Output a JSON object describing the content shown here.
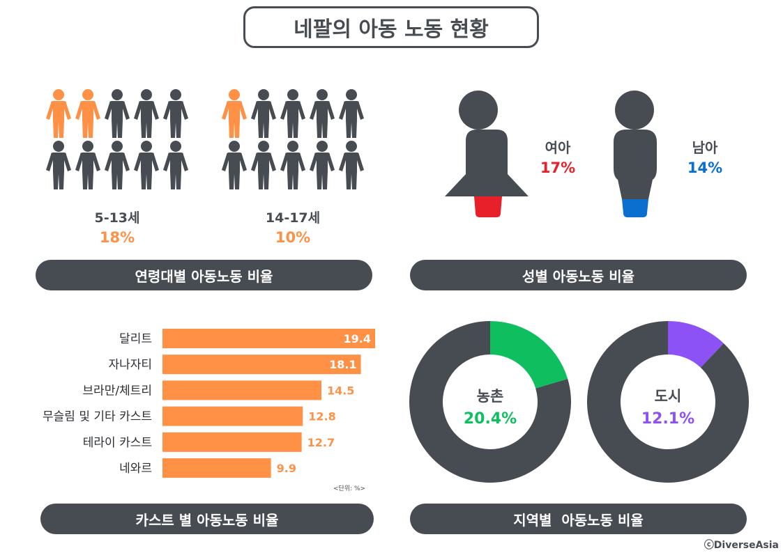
{
  "title": "네팔의 아동 노동 현황",
  "colors": {
    "dark": "#474c53",
    "orange": "#ff9147",
    "red": "#e8202a",
    "blue": "#0a6fcf",
    "green": "#0fbf5f",
    "purple": "#8d52f5"
  },
  "age": {
    "section_label": "연령대별 아동노동 비율",
    "groups": [
      {
        "age": "5-13세",
        "percent": "18%",
        "highlighted_of_10": 2
      },
      {
        "age": "14-17세",
        "percent": "10%",
        "highlighted_of_10": 1
      }
    ]
  },
  "gender": {
    "section_label": "성별 아동노동 비율",
    "female": {
      "label": "여아",
      "percent": "17%"
    },
    "male": {
      "label": "남아",
      "percent": "14%"
    }
  },
  "caste": {
    "section_label": "카스트 별 아동노동 비율",
    "unit": "<단위: %>"
  },
  "region": {
    "section_label": "지역별  아동노동 비율",
    "rural": {
      "label": "농촌",
      "percent": "20.4%"
    },
    "urban": {
      "label": "도시",
      "percent": "12.1%"
    }
  },
  "credit": "ⓒDiverseAsia",
  "chart_data": [
    {
      "type": "bar",
      "orientation": "horizontal",
      "categories": [
        "달리트",
        "자나자티",
        "브라만/체트리",
        "무슬림 및 기타 카스트",
        "테라이 카스트",
        "네와르"
      ],
      "values": [
        19.4,
        18.1,
        14.5,
        12.8,
        12.7,
        9.9
      ],
      "value_labels": [
        "19.4",
        "18.1",
        "14.5",
        "12.8",
        "12.7",
        "9.9"
      ],
      "xlim": [
        0,
        20
      ]
    },
    {
      "type": "pie",
      "donut": true,
      "label": "농촌",
      "values": [
        20.4,
        79.6
      ]
    },
    {
      "type": "pie",
      "donut": true,
      "label": "도시",
      "values": [
        12.1,
        87.9
      ]
    }
  ]
}
